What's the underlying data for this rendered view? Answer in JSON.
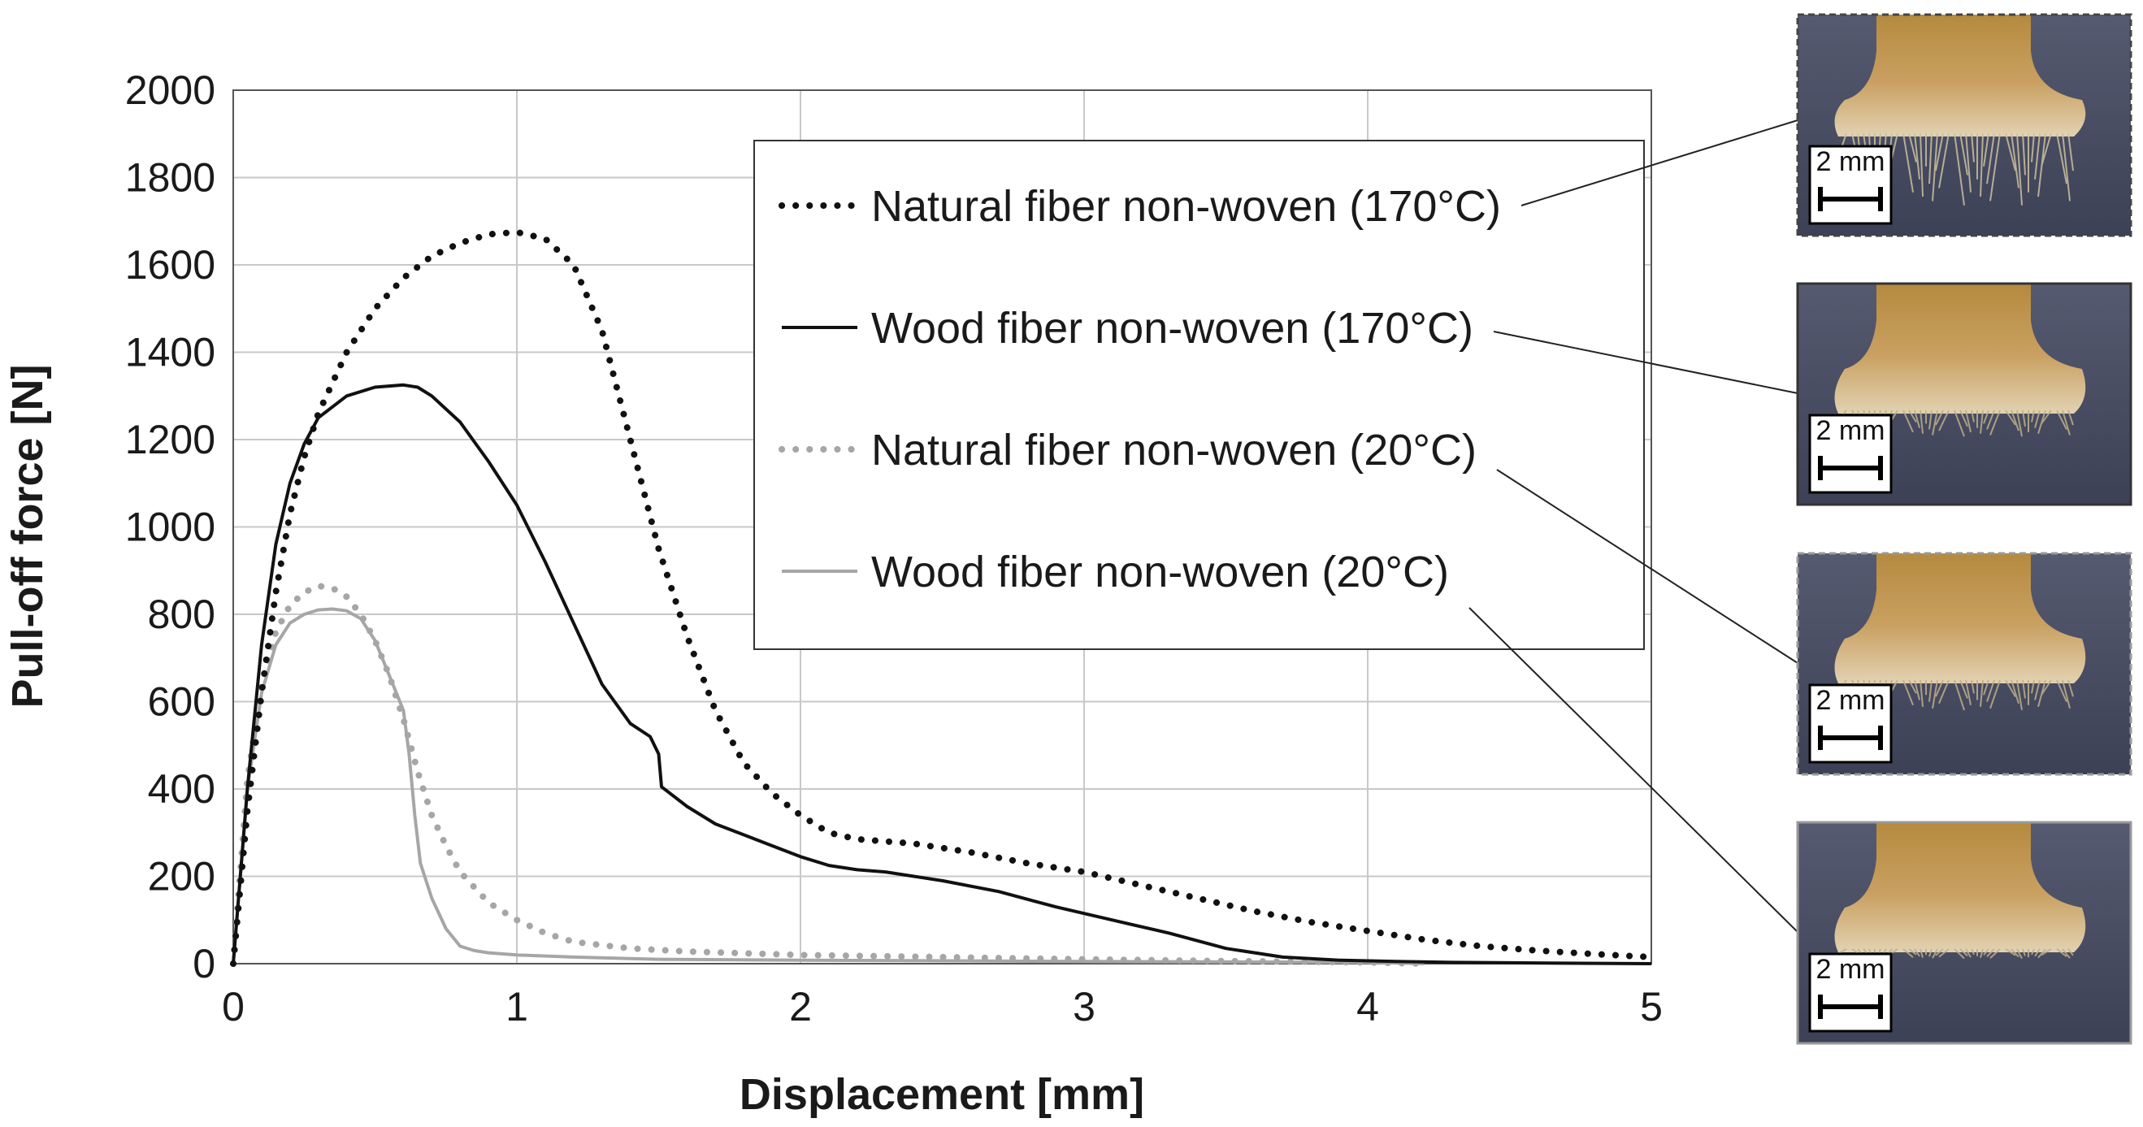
{
  "chart_data": {
    "type": "line",
    "xlabel": "Displacement [mm]",
    "ylabel": "Pull-off force [N]",
    "xlim": [
      0,
      5
    ],
    "ylim": [
      0,
      2000
    ],
    "xticks": [
      0,
      1,
      2,
      3,
      4,
      5
    ],
    "yticks": [
      0,
      200,
      400,
      600,
      800,
      1000,
      1200,
      1400,
      1600,
      1800,
      2000
    ],
    "grid": true,
    "legend_position": "top-right",
    "series": [
      {
        "name": "Natural fiber non-woven (170°C)",
        "color": "#111111",
        "style": "dotted",
        "x": [
          0,
          0.05,
          0.1,
          0.15,
          0.2,
          0.25,
          0.3,
          0.4,
          0.5,
          0.6,
          0.7,
          0.8,
          0.9,
          1.0,
          1.1,
          1.2,
          1.3,
          1.4,
          1.5,
          1.6,
          1.7,
          1.8,
          1.9,
          2.0,
          2.1,
          2.2,
          2.4,
          2.6,
          2.8,
          3.0,
          3.2,
          3.4,
          3.6,
          3.8,
          4.0,
          4.2,
          4.4,
          4.6,
          4.8,
          5.0
        ],
        "y": [
          0,
          350,
          620,
          850,
          1030,
          1160,
          1260,
          1400,
          1500,
          1570,
          1620,
          1650,
          1670,
          1675,
          1660,
          1600,
          1450,
          1200,
          950,
          750,
          580,
          460,
          390,
          340,
          300,
          285,
          275,
          255,
          230,
          210,
          180,
          150,
          120,
          95,
          75,
          55,
          40,
          30,
          22,
          15
        ]
      },
      {
        "name": "Wood fiber non-woven (170°C)",
        "color": "#111111",
        "style": "solid",
        "x": [
          0,
          0.05,
          0.1,
          0.15,
          0.2,
          0.25,
          0.3,
          0.4,
          0.5,
          0.6,
          0.65,
          0.7,
          0.8,
          0.9,
          1.0,
          1.1,
          1.2,
          1.3,
          1.4,
          1.47,
          1.5,
          1.51,
          1.6,
          1.7,
          1.8,
          1.9,
          2.0,
          2.1,
          2.2,
          2.3,
          2.5,
          2.7,
          2.9,
          3.1,
          3.3,
          3.5,
          3.7,
          3.9,
          4.1,
          4.3,
          4.5,
          5.0
        ],
        "y": [
          0,
          400,
          730,
          960,
          1100,
          1190,
          1250,
          1300,
          1320,
          1325,
          1320,
          1300,
          1240,
          1150,
          1050,
          920,
          780,
          640,
          550,
          520,
          480,
          405,
          360,
          320,
          295,
          270,
          245,
          225,
          215,
          210,
          190,
          165,
          130,
          100,
          70,
          35,
          15,
          8,
          5,
          3,
          2,
          0
        ]
      },
      {
        "name": "Natural fiber non-woven (20°C)",
        "color": "#a6a6a6",
        "style": "dotted",
        "x": [
          0,
          0.05,
          0.1,
          0.15,
          0.2,
          0.25,
          0.3,
          0.35,
          0.4,
          0.45,
          0.5,
          0.55,
          0.6,
          0.65,
          0.7,
          0.75,
          0.8,
          0.9,
          1.0,
          1.1,
          1.2,
          1.4,
          1.6,
          2.0,
          2.5,
          3.0,
          3.5,
          4.0,
          4.2
        ],
        "y": [
          0,
          420,
          640,
          760,
          820,
          850,
          865,
          860,
          840,
          800,
          740,
          660,
          560,
          440,
          340,
          270,
          210,
          140,
          100,
          70,
          50,
          35,
          28,
          20,
          15,
          10,
          6,
          3,
          0
        ]
      },
      {
        "name": "Wood fiber non-woven (20°C)",
        "color": "#a6a6a6",
        "style": "solid",
        "x": [
          0,
          0.05,
          0.1,
          0.15,
          0.2,
          0.25,
          0.3,
          0.35,
          0.4,
          0.45,
          0.5,
          0.55,
          0.6,
          0.62,
          0.64,
          0.66,
          0.7,
          0.75,
          0.8,
          0.85,
          0.9,
          1.0,
          1.2,
          1.5,
          2.0,
          3.0,
          4.0,
          4.2
        ],
        "y": [
          0,
          400,
          620,
          730,
          780,
          800,
          810,
          812,
          808,
          790,
          740,
          660,
          580,
          480,
          340,
          230,
          150,
          80,
          40,
          30,
          25,
          20,
          15,
          10,
          8,
          5,
          3,
          0
        ]
      }
    ],
    "scale_bar_label": "2 mm",
    "photos": [
      {
        "series": "Natural fiber non-woven (170°C)",
        "border": "#444444",
        "border_style": "dashed"
      },
      {
        "series": "Wood fiber non-woven (170°C)",
        "border": "#333333",
        "border_style": "solid"
      },
      {
        "series": "Natural fiber non-woven (20°C)",
        "border": "#999999",
        "border_style": "dashed"
      },
      {
        "series": "Wood fiber non-woven (20°C)",
        "border": "#999999",
        "border_style": "solid"
      }
    ]
  }
}
